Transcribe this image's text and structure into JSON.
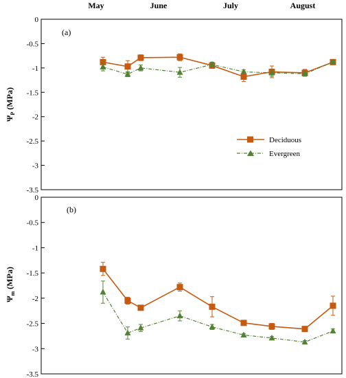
{
  "months": [
    "May",
    "June",
    "July",
    "August"
  ],
  "colors": {
    "deciduous": "#c55a11",
    "evergreen": "#548235",
    "axis": "#000000"
  },
  "legend": {
    "deciduous": "Deciduous",
    "evergreen": "Evergreen"
  },
  "chart_data": [
    {
      "type": "line",
      "panel_label": "(a)",
      "ylabel_main": "Ψ",
      "ylabel_sub": "P",
      "ylabel_unit": " (MPa)",
      "ylim": [
        -3.5,
        0
      ],
      "yticks": [
        0,
        -0.5,
        -1,
        -1.5,
        -2,
        -2.5,
        -3,
        -3.5
      ],
      "ytick_labels": [
        "0",
        "-0.5",
        "-1",
        "-1.5",
        "-2",
        "-2.5",
        "-3",
        "-3.5"
      ],
      "grid": false,
      "legend_position": "right",
      "series": [
        {
          "name": "Deciduous",
          "marker": "square",
          "line": "solid",
          "x": [
            1,
            2,
            3,
            4,
            5,
            6,
            7,
            8,
            9
          ],
          "values": [
            -0.88,
            -0.97,
            -0.79,
            -0.78,
            -0.95,
            -1.18,
            -1.08,
            -1.1,
            -0.88
          ],
          "errors": [
            0.1,
            0.12,
            0.06,
            0.07,
            0.06,
            0.1,
            0.12,
            0.07,
            0.04
          ]
        },
        {
          "name": "Evergreen",
          "marker": "triangle",
          "line": "dash-dot",
          "x": [
            1,
            2,
            3,
            4,
            5,
            6,
            7,
            8,
            9
          ],
          "values": [
            -0.98,
            -1.13,
            -1.0,
            -1.09,
            -0.93,
            -1.08,
            -1.1,
            -1.12,
            -0.88
          ],
          "errors": [
            0.08,
            0.05,
            0.06,
            0.1,
            0.05,
            0.04,
            0.07,
            0.05,
            0.03
          ]
        }
      ]
    },
    {
      "type": "line",
      "panel_label": "(b)",
      "ylabel_main": "Ψ",
      "ylabel_sub": "m",
      "ylabel_unit": " (MPa)",
      "ylim": [
        -3.5,
        0
      ],
      "yticks": [
        0,
        -0.5,
        -1,
        -1.5,
        -2,
        -2.5,
        -3,
        -3.5
      ],
      "ytick_labels": [
        "0",
        "-0.5",
        "-1",
        "-1.5",
        "-2",
        "-2.5",
        "-3",
        "-3.5"
      ],
      "grid": false,
      "series": [
        {
          "name": "Deciduous",
          "marker": "square",
          "line": "solid",
          "x": [
            1,
            2,
            3,
            4,
            5,
            6,
            7,
            8,
            9
          ],
          "values": [
            -1.42,
            -2.05,
            -2.19,
            -1.78,
            -2.17,
            -2.49,
            -2.56,
            -2.61,
            -2.15
          ],
          "errors": [
            0.13,
            0.07,
            0.03,
            0.08,
            0.2,
            0.05,
            0.06,
            0.04,
            0.19
          ]
        },
        {
          "name": "Evergreen",
          "marker": "triangle",
          "line": "dash-dot",
          "x": [
            1,
            2,
            3,
            4,
            5,
            6,
            7,
            8,
            9
          ],
          "values": [
            -1.88,
            -2.69,
            -2.59,
            -2.35,
            -2.57,
            -2.73,
            -2.79,
            -2.87,
            -2.65
          ],
          "errors": [
            0.22,
            0.12,
            0.07,
            0.1,
            0.05,
            0.03,
            0.03,
            0.03,
            0.04
          ]
        }
      ]
    }
  ]
}
